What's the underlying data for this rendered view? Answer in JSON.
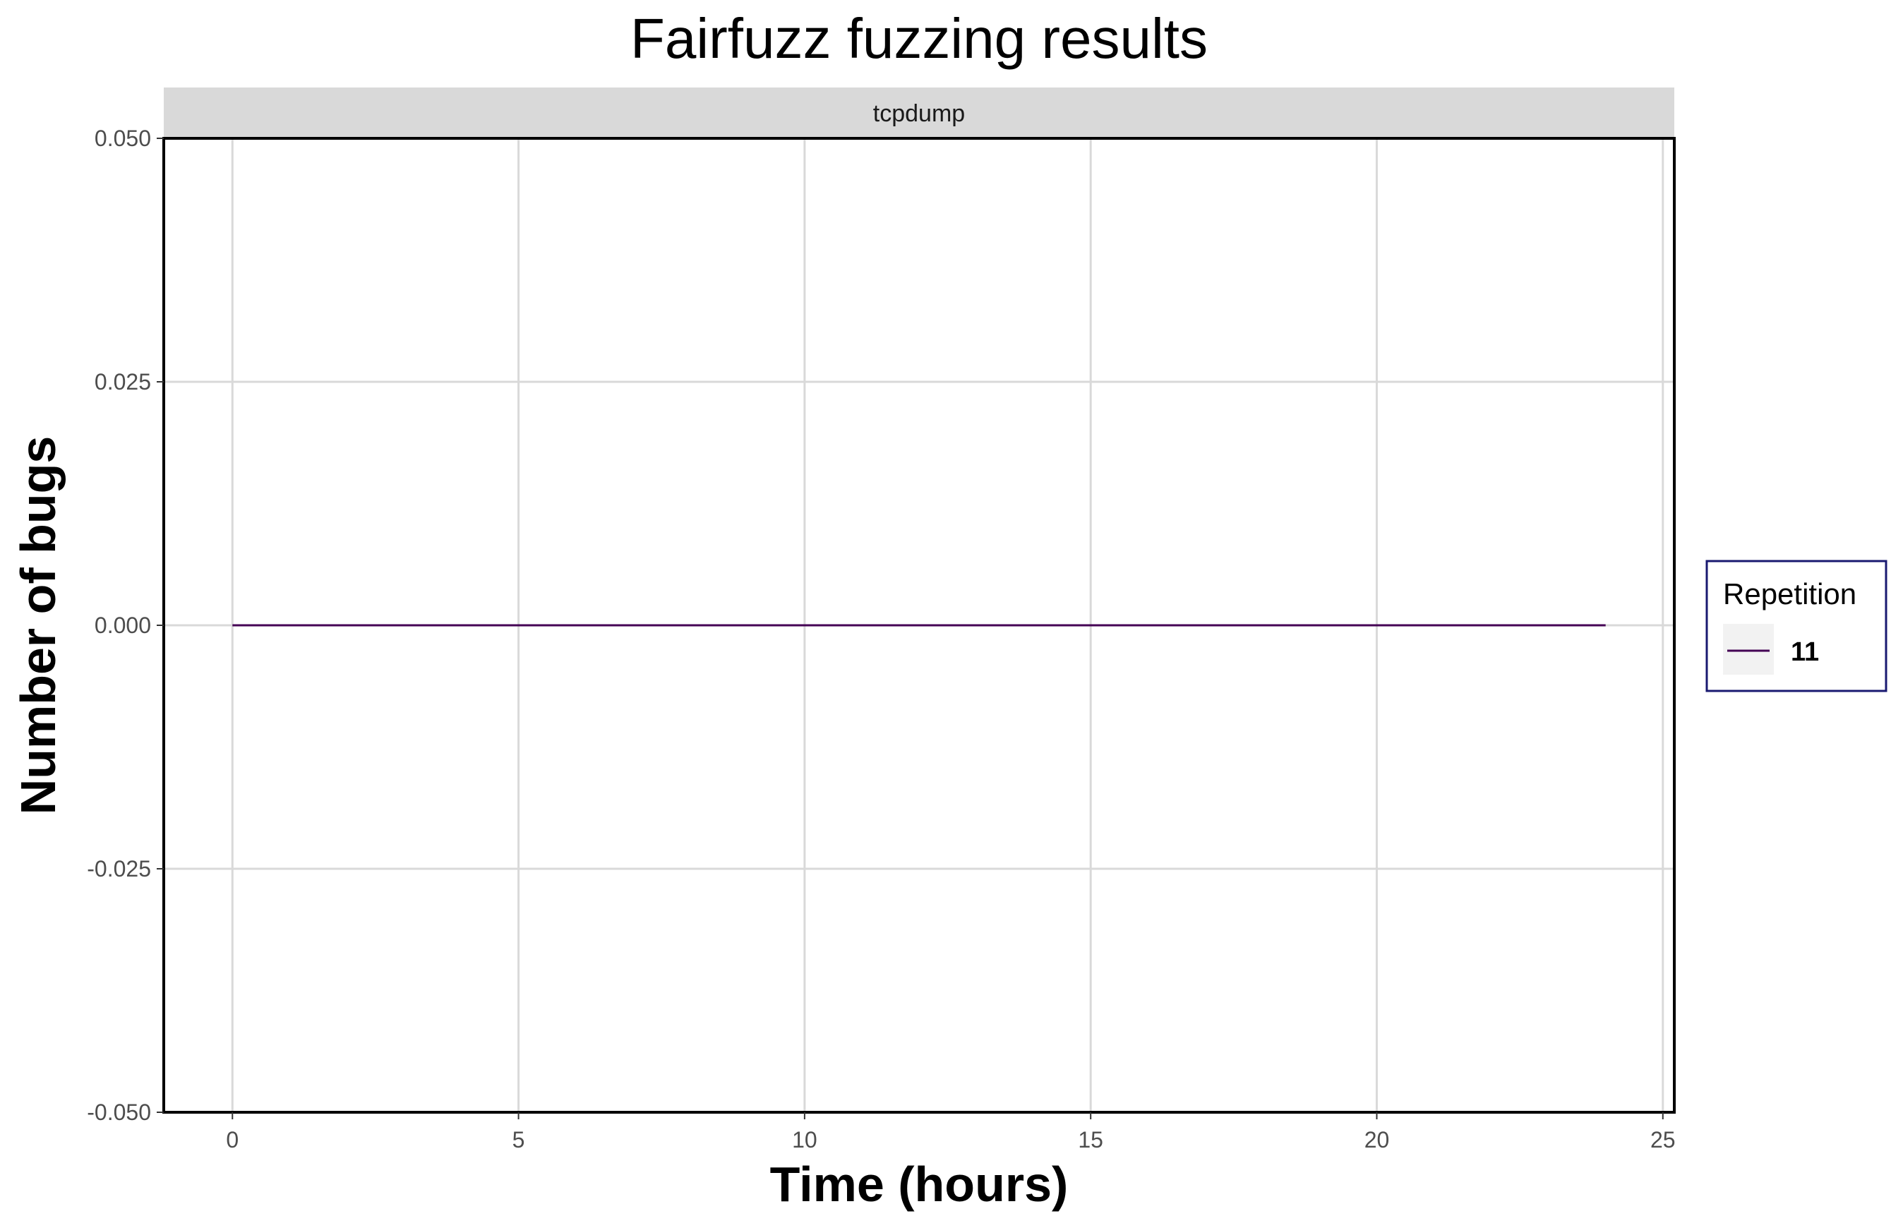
{
  "chart_data": {
    "type": "line",
    "title": "Fairfuzz fuzzing results",
    "facet_label": "tcpdump",
    "xlabel": "Time (hours)",
    "ylabel": "Number of bugs",
    "xlim": [
      -1.2,
      25.2
    ],
    "ylim": [
      -0.05,
      0.05
    ],
    "x_ticks": [
      0,
      5,
      10,
      15,
      20,
      25
    ],
    "x_tick_labels": [
      "0",
      "5",
      "10",
      "15",
      "20",
      "25"
    ],
    "y_ticks": [
      0.05,
      0.025,
      0,
      -0.025,
      -0.05
    ],
    "y_tick_labels": [
      "0.050",
      "0.025",
      "0.000",
      "-0.025",
      "-0.050"
    ],
    "grid": true,
    "legend": {
      "title": "Repetition",
      "position": "right"
    },
    "series": [
      {
        "name": "11",
        "color": "#440154",
        "x": [
          0,
          24
        ],
        "y": [
          0,
          0
        ]
      }
    ]
  },
  "colors": {
    "grid": "#d9d9d9",
    "strip_background": "#d9d9d9",
    "panel_border": "#000000",
    "legend_border": "#191970",
    "legend_key_background": "#f2f2f2"
  }
}
